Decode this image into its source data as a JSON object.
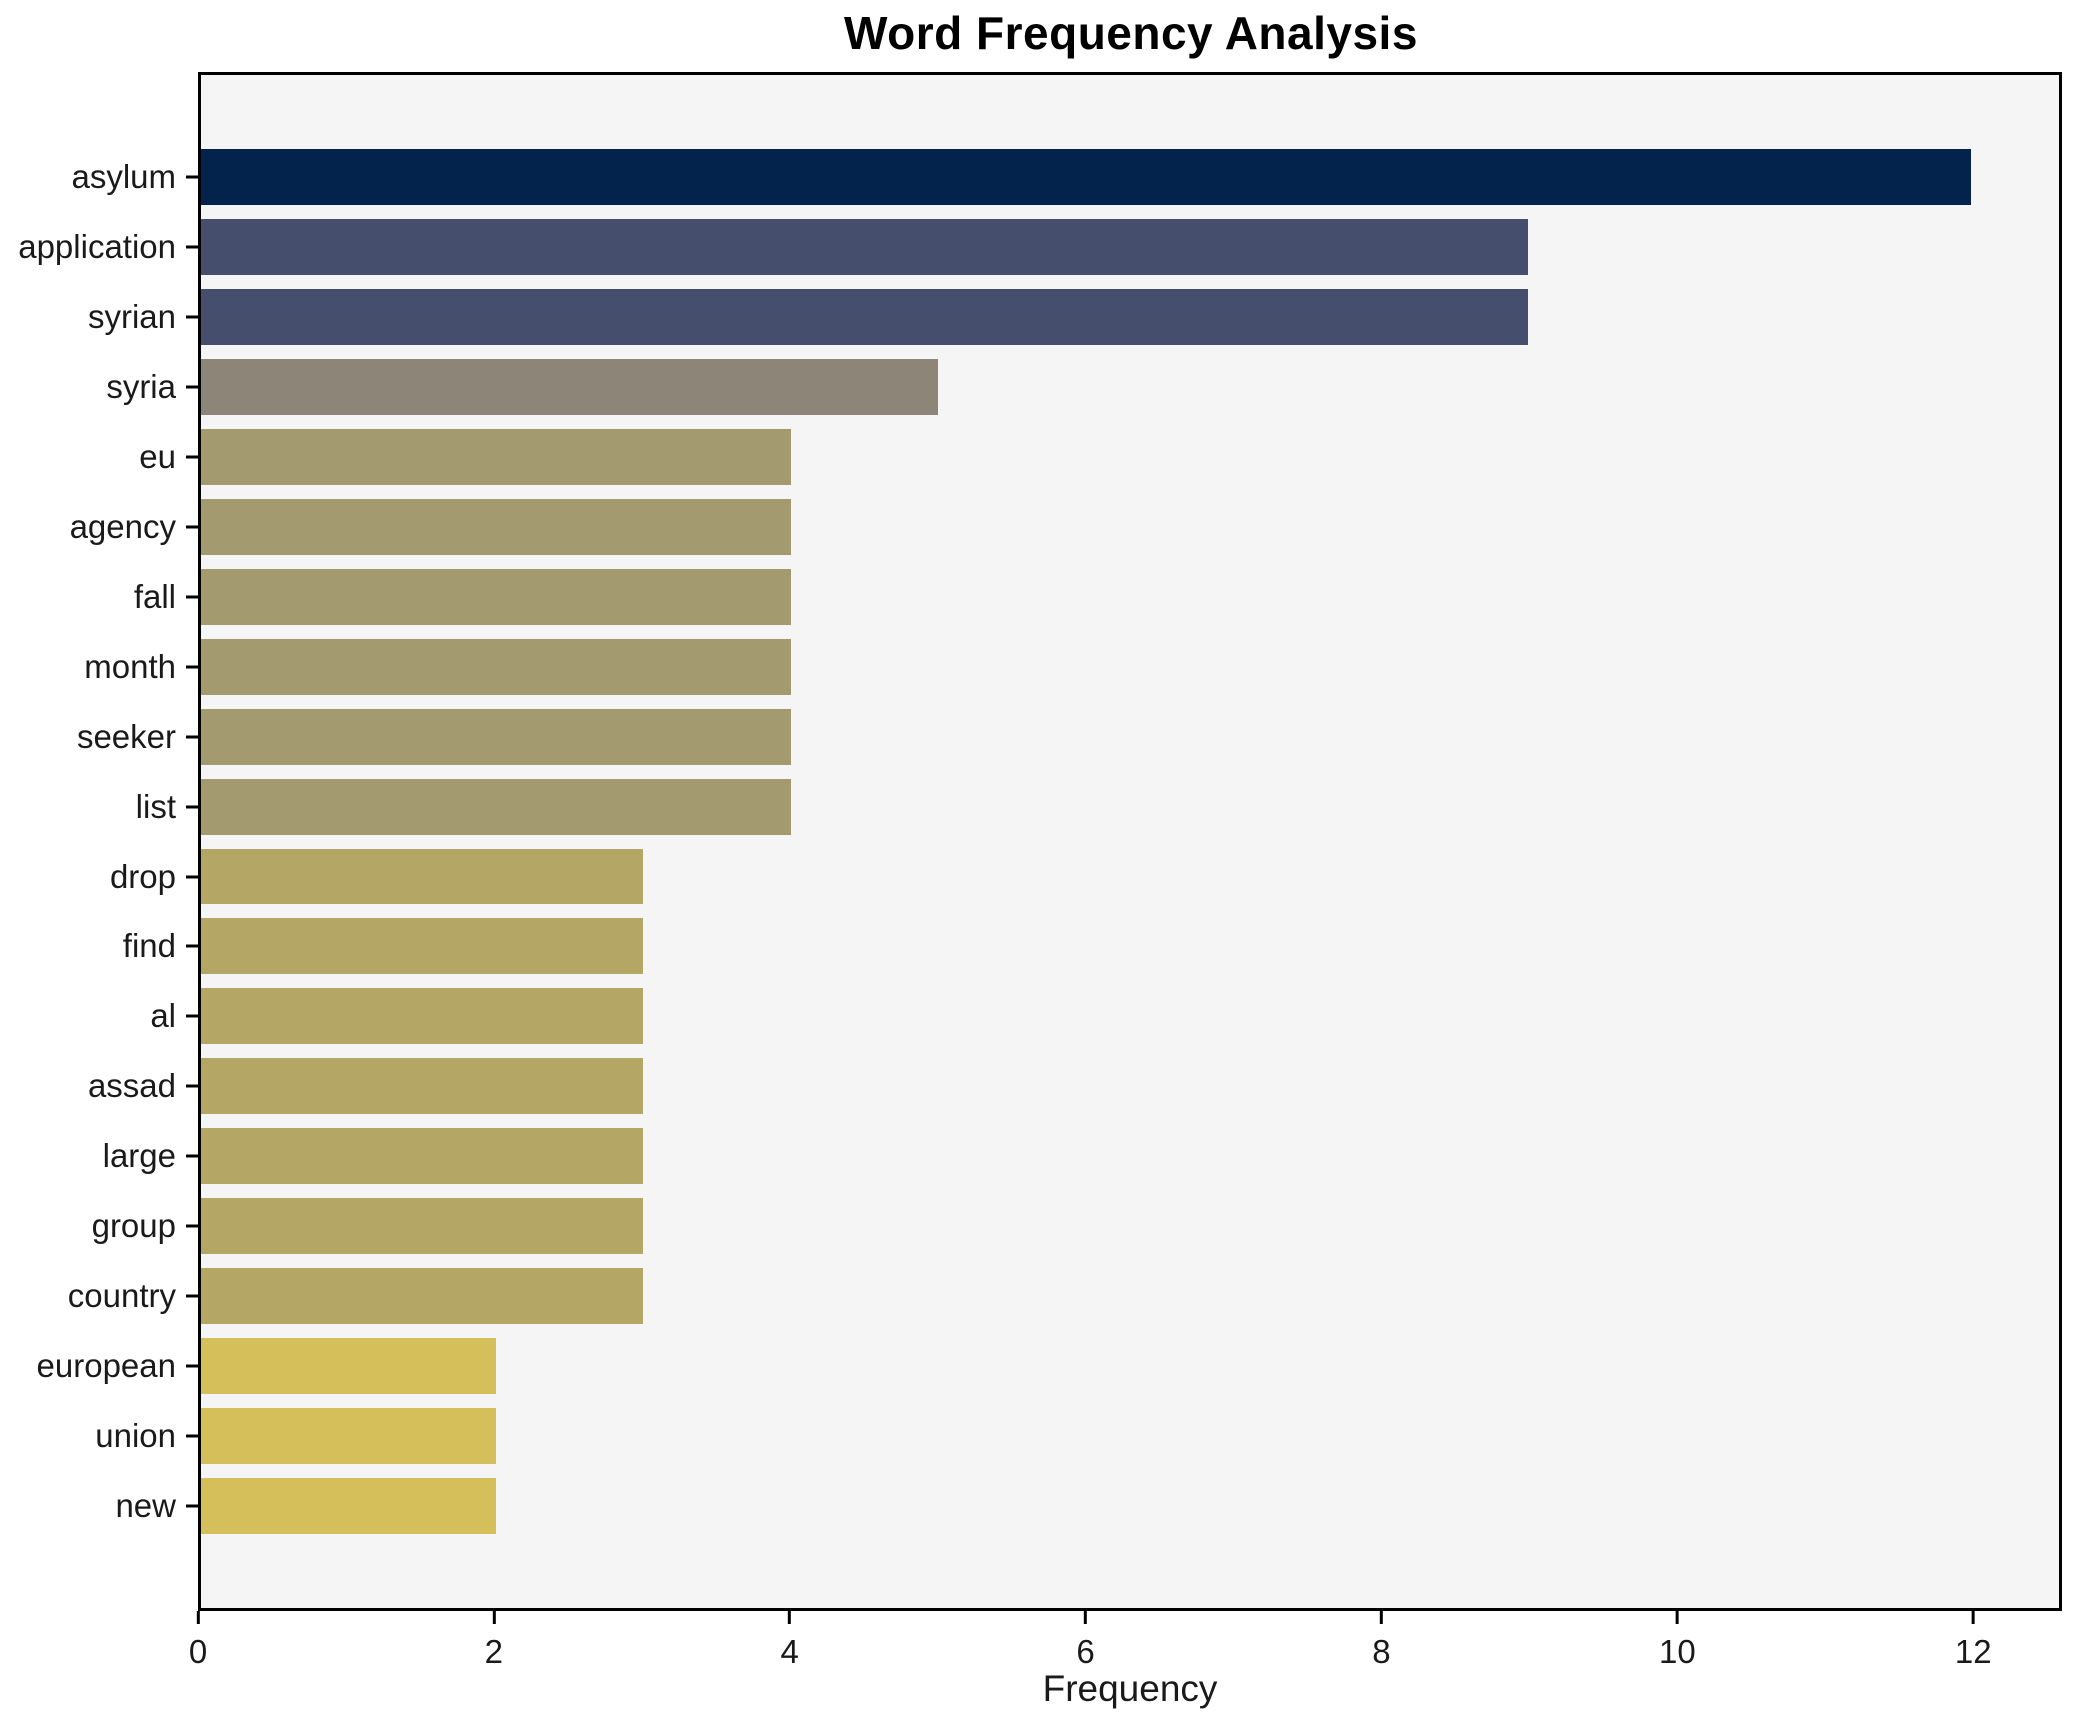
{
  "chart_data": {
    "type": "bar",
    "orientation": "horizontal",
    "title": "Word Frequency Analysis",
    "xlabel": "Frequency",
    "ylabel": "",
    "categories": [
      "asylum",
      "application",
      "syrian",
      "syria",
      "eu",
      "agency",
      "fall",
      "month",
      "seeker",
      "list",
      "drop",
      "find",
      "al",
      "assad",
      "large",
      "group",
      "country",
      "european",
      "union",
      "new"
    ],
    "values": [
      12,
      9,
      9,
      5,
      4,
      4,
      4,
      4,
      4,
      4,
      3,
      3,
      3,
      3,
      3,
      3,
      3,
      2,
      2,
      2
    ],
    "x_ticks": [
      0,
      2,
      4,
      6,
      8,
      10,
      12
    ],
    "xlim": [
      0,
      12.6
    ],
    "grid": false,
    "legend": null,
    "colors_by_value": {
      "12": "#03224c",
      "9": "#454f6d",
      "5": "#8d8577",
      "4": "#a39a70",
      "3": "#b4a766",
      "2": "#d5bf5b"
    },
    "plot_background": "#f5f5f6",
    "figure_background": "#ffffff",
    "axis_color": "#000000"
  }
}
